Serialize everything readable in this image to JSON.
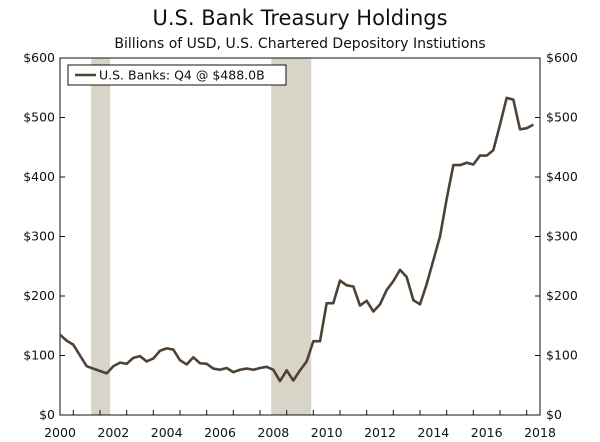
{
  "chart_data": {
    "type": "line",
    "title": "U.S. Bank Treasury Holdings",
    "subtitle": "Billions of USD, U.S. Chartered Depository Instiutions",
    "xlabel": "",
    "ylabel": "",
    "xlim": [
      2000,
      2018
    ],
    "ylim": [
      0,
      600
    ],
    "grid": false,
    "legend_position": "top-left",
    "x_ticks": [
      2000,
      2002,
      2004,
      2006,
      2008,
      2010,
      2012,
      2014,
      2016,
      2018
    ],
    "y_ticks": [
      0,
      100,
      200,
      300,
      400,
      500,
      600
    ],
    "y_tick_labels": [
      "$0",
      "$100",
      "$200",
      "$300",
      "$400",
      "$500",
      "$600"
    ],
    "recessions": [
      {
        "start": 2001.17,
        "end": 2001.88
      },
      {
        "start": 2007.92,
        "end": 2009.42
      }
    ],
    "colors": {
      "line": "#4e4236",
      "recession": "#d9d4c8",
      "axis": "#111111"
    },
    "series": [
      {
        "name": "U.S. Banks: Q4 @ $488.0B",
        "x": [
          2000.0,
          2000.25,
          2000.5,
          2000.75,
          2001.0,
          2001.25,
          2001.5,
          2001.75,
          2002.0,
          2002.25,
          2002.5,
          2002.75,
          2003.0,
          2003.25,
          2003.5,
          2003.75,
          2004.0,
          2004.25,
          2004.5,
          2004.75,
          2005.0,
          2005.25,
          2005.5,
          2005.75,
          2006.0,
          2006.25,
          2006.5,
          2006.75,
          2007.0,
          2007.25,
          2007.5,
          2007.75,
          2008.0,
          2008.25,
          2008.5,
          2008.75,
          2009.0,
          2009.25,
          2009.5,
          2009.75,
          2010.0,
          2010.25,
          2010.5,
          2010.75,
          2011.0,
          2011.25,
          2011.5,
          2011.75,
          2012.0,
          2012.25,
          2012.5,
          2012.75,
          2013.0,
          2013.25,
          2013.5,
          2013.75,
          2014.0,
          2014.25,
          2014.5,
          2014.75,
          2015.0,
          2015.25,
          2015.5,
          2015.75,
          2016.0,
          2016.25,
          2016.5,
          2016.75,
          2017.0,
          2017.25,
          2017.5,
          2017.75
        ],
        "values": [
          135,
          125,
          118,
          100,
          82,
          78,
          74,
          70,
          82,
          88,
          86,
          96,
          99,
          90,
          95,
          108,
          112,
          110,
          92,
          85,
          97,
          87,
          86,
          78,
          76,
          79,
          72,
          76,
          78,
          76,
          79,
          81,
          76,
          57,
          75,
          58,
          75,
          90,
          124,
          124,
          188,
          188,
          226,
          218,
          216,
          184,
          192,
          174,
          186,
          210,
          225,
          244,
          232,
          193,
          186,
          220,
          260,
          300,
          363,
          420,
          420,
          424,
          421,
          436,
          436,
          445,
          488,
          533,
          530,
          480,
          482,
          488
        ]
      }
    ]
  }
}
